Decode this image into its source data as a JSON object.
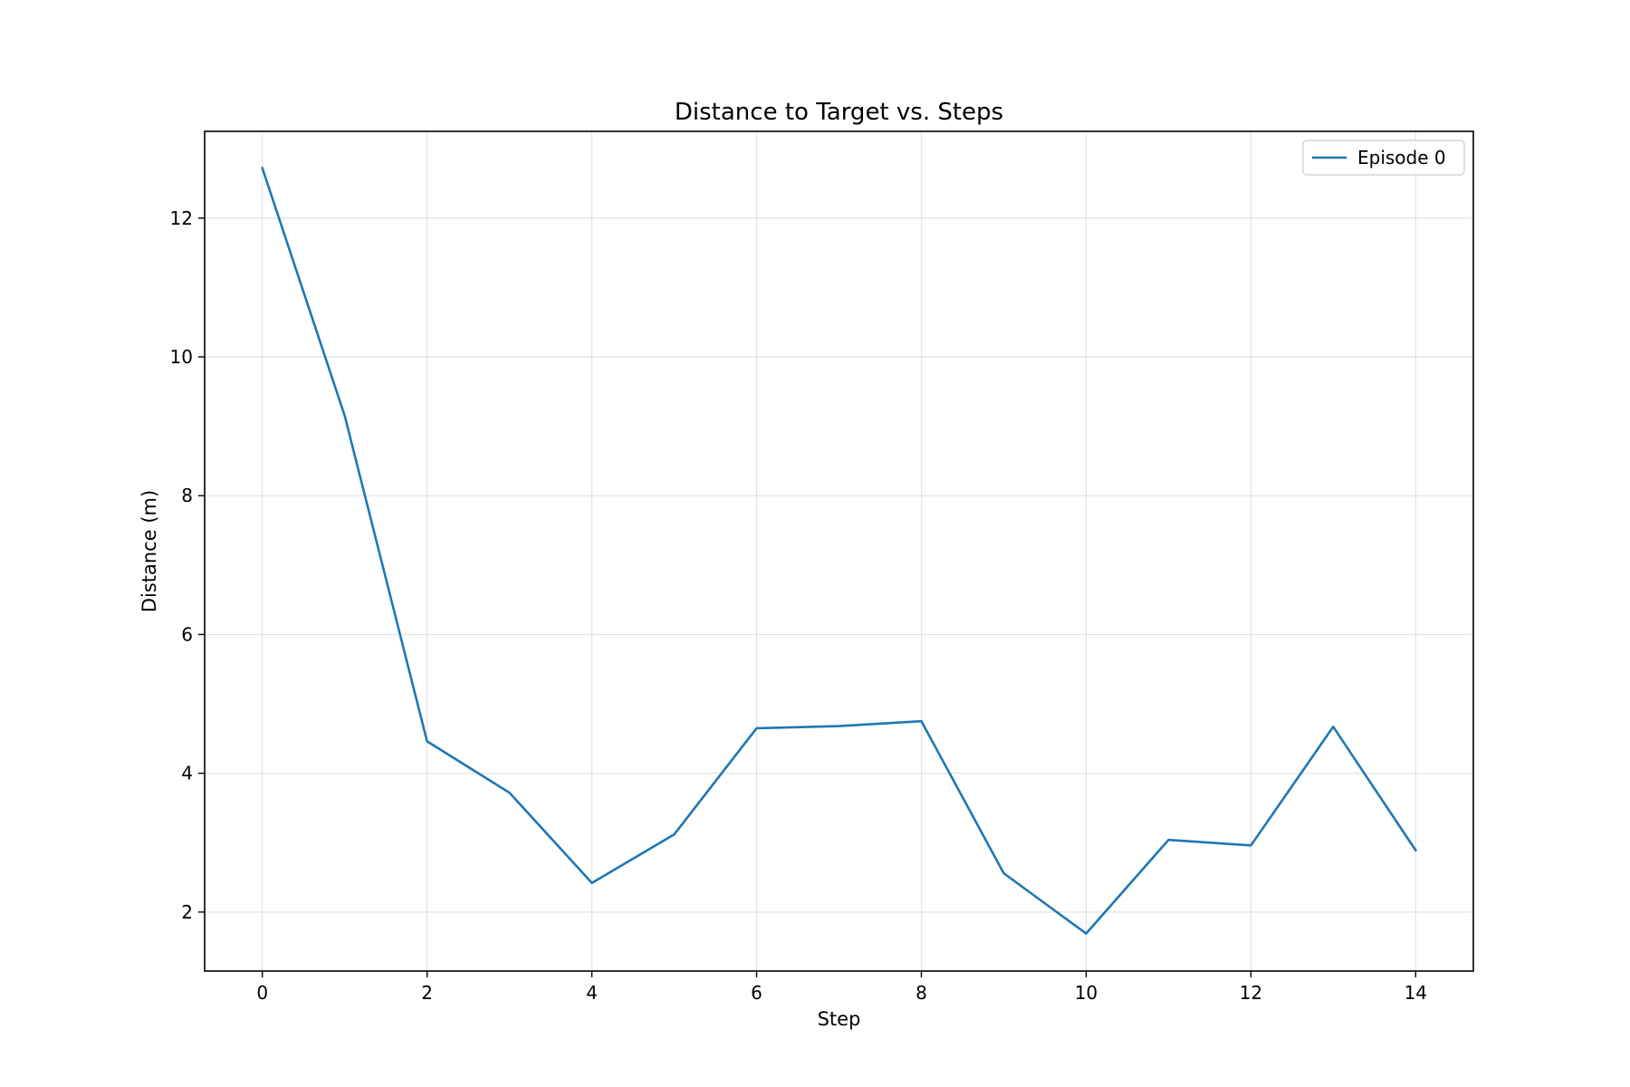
{
  "chart_data": {
    "type": "line",
    "title": "Distance to Target vs. Steps",
    "xlabel": "Step",
    "ylabel": "Distance (m)",
    "xlim": [
      -0.7,
      14.7
    ],
    "ylim": [
      1.15,
      13.25
    ],
    "x_ticks": [
      0,
      2,
      4,
      6,
      8,
      10,
      12,
      14
    ],
    "y_ticks": [
      2,
      4,
      6,
      8,
      10,
      12
    ],
    "grid": true,
    "legend_position": "top-right",
    "series": [
      {
        "name": "Episode 0",
        "color": "#1f77b4",
        "x": [
          0,
          1,
          2,
          3,
          4,
          5,
          6,
          7,
          8,
          9,
          10,
          11,
          12,
          13,
          14
        ],
        "y": [
          12.72,
          9.15,
          4.46,
          3.72,
          2.42,
          3.12,
          4.65,
          4.68,
          4.75,
          2.56,
          1.69,
          3.04,
          2.96,
          4.67,
          2.89
        ]
      }
    ]
  }
}
